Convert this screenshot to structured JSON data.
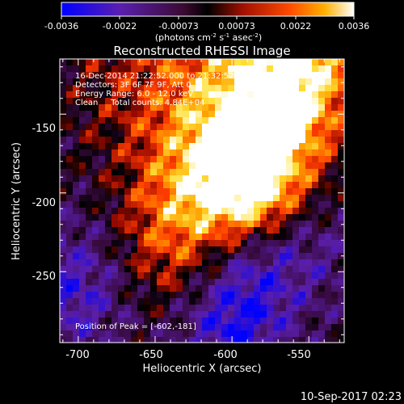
{
  "chart_data": {
    "type": "heatmap",
    "title": "Reconstructed RHESSI Image",
    "xlabel": "Heliocentric X (arcsec)",
    "ylabel": "Heliocentric Y (arcsec)",
    "xlim": [
      -712,
      -527
    ],
    "ylim": [
      -295,
      -115
    ],
    "x_ticks": [
      -700,
      -650,
      -600,
      -550
    ],
    "y_ticks": [
      -150,
      -200,
      -250
    ],
    "colorbar": {
      "range": [
        -0.0036,
        0.0036
      ],
      "ticks": [
        "-0.0036",
        "-0.0022",
        "-0.00073",
        "0.00073",
        "0.0022",
        "0.0036"
      ],
      "label_parts": {
        "a": "(photons cm",
        "b": "-2",
        "c": " s",
        "d": "-1",
        "e": " asec",
        "f": "-2",
        "g": ")"
      }
    },
    "annotations": {
      "time": "16-Dec-2014 21:22:52.000 to 21:32:52.000",
      "detectors": "Detectors: 3F 6F 7F 9F, Att 0",
      "energy": "Energy Range: 6.0 - 12.0 keV",
      "method": "Clean     Total counts: 4.84E+04",
      "peak": "Position of Peak = [-602,-181]"
    },
    "peak": {
      "x": -602,
      "y": -181
    },
    "grid": false
  },
  "footer": {
    "timestamp": "10-Sep-2017 02:23"
  }
}
